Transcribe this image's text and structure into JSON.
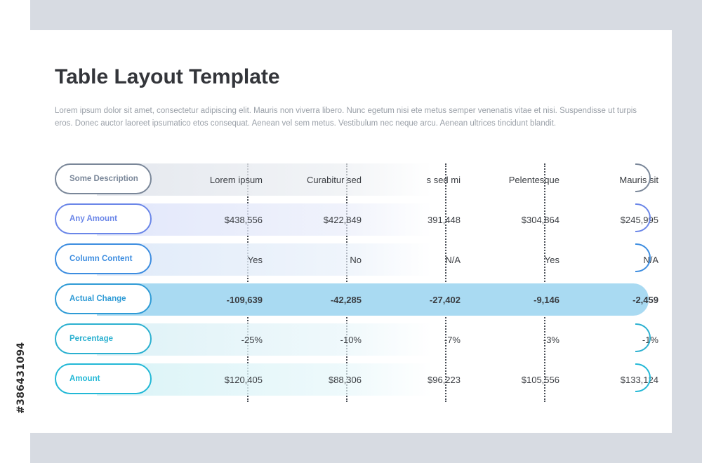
{
  "side_id": "#386431094",
  "title": "Table Layout Template",
  "description": "Lorem ipsum dolor sit amet, consectetur adipiscing elit. Mauris non viverra libero. Nunc egetum nisi ete metus semper venenatis vitae et nisi. Suspendisse ut turpis eros. Donec auctor laoreet ipsumatico etos consequat. Aenean vel sem metus. Vestibulum nec neque arcu. Aenean ultrices tincidunt blandit.",
  "colors": {
    "header": "#7a8799",
    "amount_blue": "#6a86e8",
    "blue": "#3d8de0",
    "highlight": "#a9daf2",
    "teal": "#2bb0d0",
    "cyan": "#22b8d6"
  },
  "table": {
    "rows": [
      {
        "label": "Some Description",
        "cells": [
          "Lorem ipsum",
          "Curabitur sed",
          "s sed mi",
          "Pelentesque",
          "Mauris sit"
        ]
      },
      {
        "label": "Any Amount",
        "cells": [
          "$438,556",
          "$422,849",
          "391,448",
          "$304,864",
          "$245,995"
        ]
      },
      {
        "label": "Column Content",
        "cells": [
          "Yes",
          "No",
          "N/A",
          "Yes",
          "N/A"
        ]
      },
      {
        "label": "Actual Change",
        "cells": [
          "-109,639",
          "-42,285",
          "-27,402",
          "-9,146",
          "-2,459"
        ]
      },
      {
        "label": "Percentage",
        "cells": [
          "-25%",
          "-10%",
          "-7%",
          "-3%",
          "-1%"
        ]
      },
      {
        "label": "Amount",
        "cells": [
          "$120,405",
          "$88,306",
          "$96,223",
          "$105,556",
          "$133,124"
        ]
      }
    ]
  }
}
